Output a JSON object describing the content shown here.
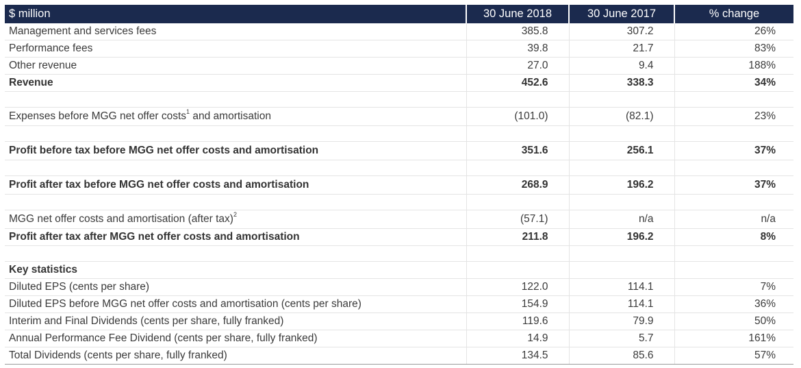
{
  "header": {
    "label": "$ million",
    "col1": "30 June 2018",
    "col2": "30 June 2017",
    "col3": "% change"
  },
  "rows": [
    {
      "label": "Management and services fees",
      "v2018": "385.8",
      "v2017": "307.2",
      "change": "26%"
    },
    {
      "label": "Performance fees",
      "v2018": "39.8",
      "v2017": "21.7",
      "change": "83%"
    },
    {
      "label": "Other revenue",
      "v2018": "27.0",
      "v2017": "9.4",
      "change": "188%"
    },
    {
      "label": "Revenue",
      "v2018": "452.6",
      "v2017": "338.3",
      "change": "34%"
    },
    {
      "label": "Expenses before MGG net offer costs",
      "footnote": "1",
      "label_after": " and amortisation",
      "v2018": "(101.0)",
      "v2017": "(82.1)",
      "change": "23%"
    },
    {
      "label": "Profit before tax before MGG net offer costs and amortisation",
      "v2018": "351.6",
      "v2017": "256.1",
      "change": "37%"
    },
    {
      "label": "Profit after tax before MGG net offer costs and amortisation",
      "v2018": "268.9",
      "v2017": "196.2",
      "change": "37%"
    },
    {
      "label": "MGG net offer costs and amortisation (after tax)",
      "footnote": "2",
      "v2018": "(57.1)",
      "v2017": "n/a",
      "change": "n/a"
    },
    {
      "label": "Profit after tax after MGG net offer costs and amortisation",
      "v2018": "211.8",
      "v2017": "196.2",
      "change": "8%"
    }
  ],
  "key_statistics": {
    "heading": "Key statistics",
    "rows": [
      {
        "label": "Diluted EPS (cents per share)",
        "v2018": "122.0",
        "v2017": "114.1",
        "change": "7%"
      },
      {
        "label": "Diluted EPS before MGG net offer costs and amortisation (cents per share)",
        "v2018": "154.9",
        "v2017": "114.1",
        "change": "36%"
      },
      {
        "label": "Interim and Final Dividends (cents per share, fully franked)",
        "v2018": "119.6",
        "v2017": "79.9",
        "change": "50%"
      },
      {
        "label": "Annual Performance Fee Dividend (cents per share, fully franked)",
        "v2018": "14.9",
        "v2017": "5.7",
        "change": "161%"
      },
      {
        "label": "Total Dividends (cents per share, fully franked)",
        "v2018": "134.5",
        "v2017": "85.6",
        "change": "57%"
      }
    ]
  },
  "colors": {
    "header_bg": "#1b2a4e",
    "header_text": "#ffffff",
    "body_text": "#3a3a3a",
    "rule": "#e4e4e4"
  }
}
